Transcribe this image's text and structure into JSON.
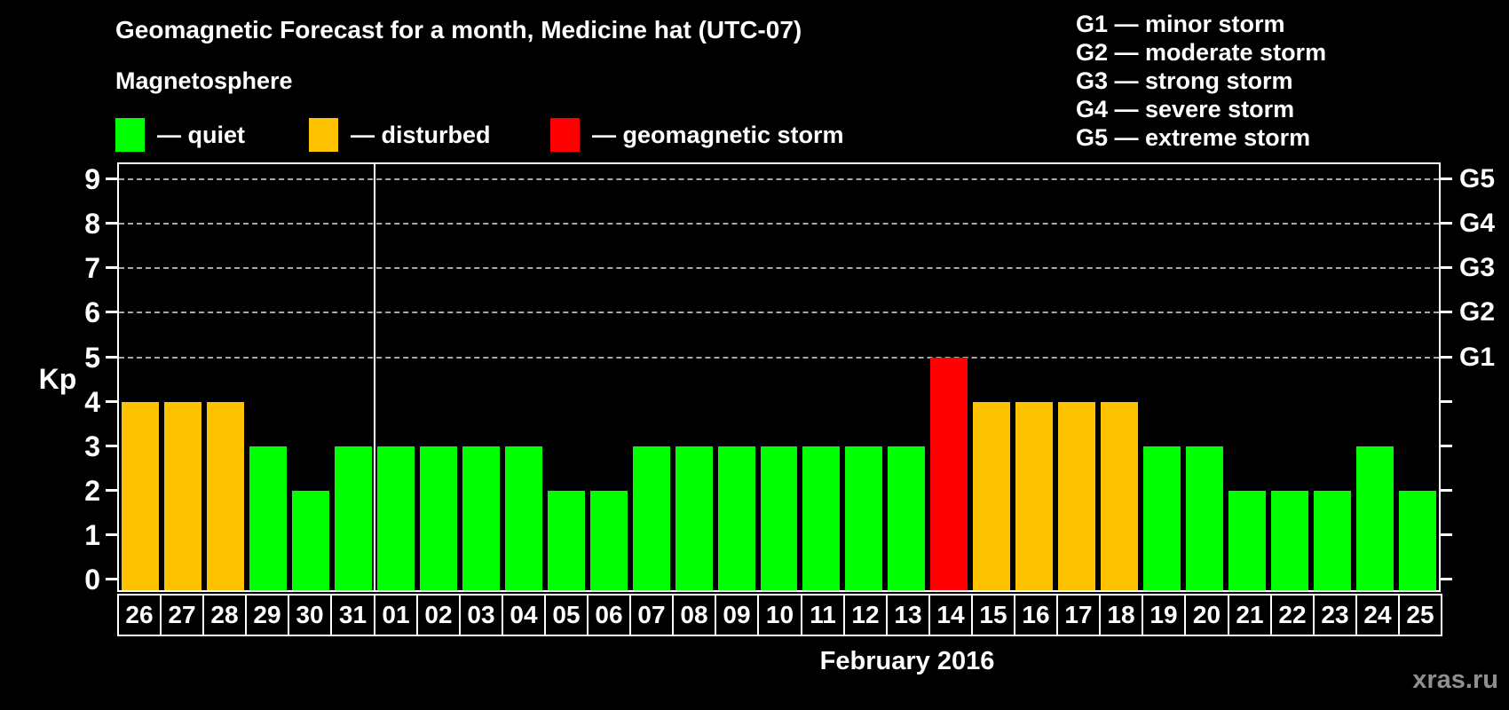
{
  "title": "Geomagnetic Forecast for a month, Medicine hat (UTC-07)",
  "subtitle": "Magnetosphere",
  "legend": {
    "items": [
      {
        "name": "quiet",
        "label": "— quiet",
        "color": "#00FF00"
      },
      {
        "name": "disturbed",
        "label": "— disturbed",
        "color": "#FFC200"
      },
      {
        "name": "storm",
        "label": "— geomagnetic storm",
        "color": "#FF0000"
      }
    ]
  },
  "g_legend": {
    "items": [
      "G1 — minor storm",
      "G2 — moderate storm",
      "G3 — strong storm",
      "G4 — severe storm",
      "G5 — extreme storm"
    ]
  },
  "watermark": "xras.ru",
  "chart_data": {
    "type": "bar",
    "title": "Geomagnetic Forecast for a month, Medicine hat (UTC-07)",
    "xlabel": "February 2016",
    "ylabel": "Kp",
    "ylim": [
      0,
      9
    ],
    "yticks": [
      0,
      1,
      2,
      3,
      4,
      5,
      6,
      7,
      8,
      9
    ],
    "gridlines_at_kp": [
      5,
      6,
      7,
      8,
      9
    ],
    "grid": "dashed horizontal lines at storm levels",
    "legend_position": "top-left",
    "right_axis": [
      {
        "kp": 5,
        "label": "G1"
      },
      {
        "kp": 6,
        "label": "G2"
      },
      {
        "kp": 7,
        "label": "G3"
      },
      {
        "kp": 8,
        "label": "G4"
      },
      {
        "kp": 9,
        "label": "G5"
      }
    ],
    "month_separator_after_index": 5,
    "categories": [
      "26",
      "27",
      "28",
      "29",
      "30",
      "31",
      "01",
      "02",
      "03",
      "04",
      "05",
      "06",
      "07",
      "08",
      "09",
      "10",
      "11",
      "12",
      "13",
      "14",
      "15",
      "16",
      "17",
      "18",
      "19",
      "20",
      "21",
      "22",
      "23",
      "24",
      "25"
    ],
    "values": [
      4,
      4,
      4,
      3,
      2,
      3,
      3,
      3,
      3,
      3,
      2,
      2,
      3,
      3,
      3,
      3,
      3,
      3,
      3,
      5,
      4,
      4,
      4,
      4,
      3,
      3,
      2,
      2,
      2,
      3,
      2
    ],
    "statuses": [
      "disturbed",
      "disturbed",
      "disturbed",
      "quiet",
      "quiet",
      "quiet",
      "quiet",
      "quiet",
      "quiet",
      "quiet",
      "quiet",
      "quiet",
      "quiet",
      "quiet",
      "quiet",
      "quiet",
      "quiet",
      "quiet",
      "quiet",
      "storm",
      "disturbed",
      "disturbed",
      "disturbed",
      "disturbed",
      "quiet",
      "quiet",
      "quiet",
      "quiet",
      "quiet",
      "quiet",
      "quiet"
    ],
    "colors": {
      "quiet": "#00FF00",
      "disturbed": "#FFC200",
      "storm": "#FF0000"
    }
  }
}
